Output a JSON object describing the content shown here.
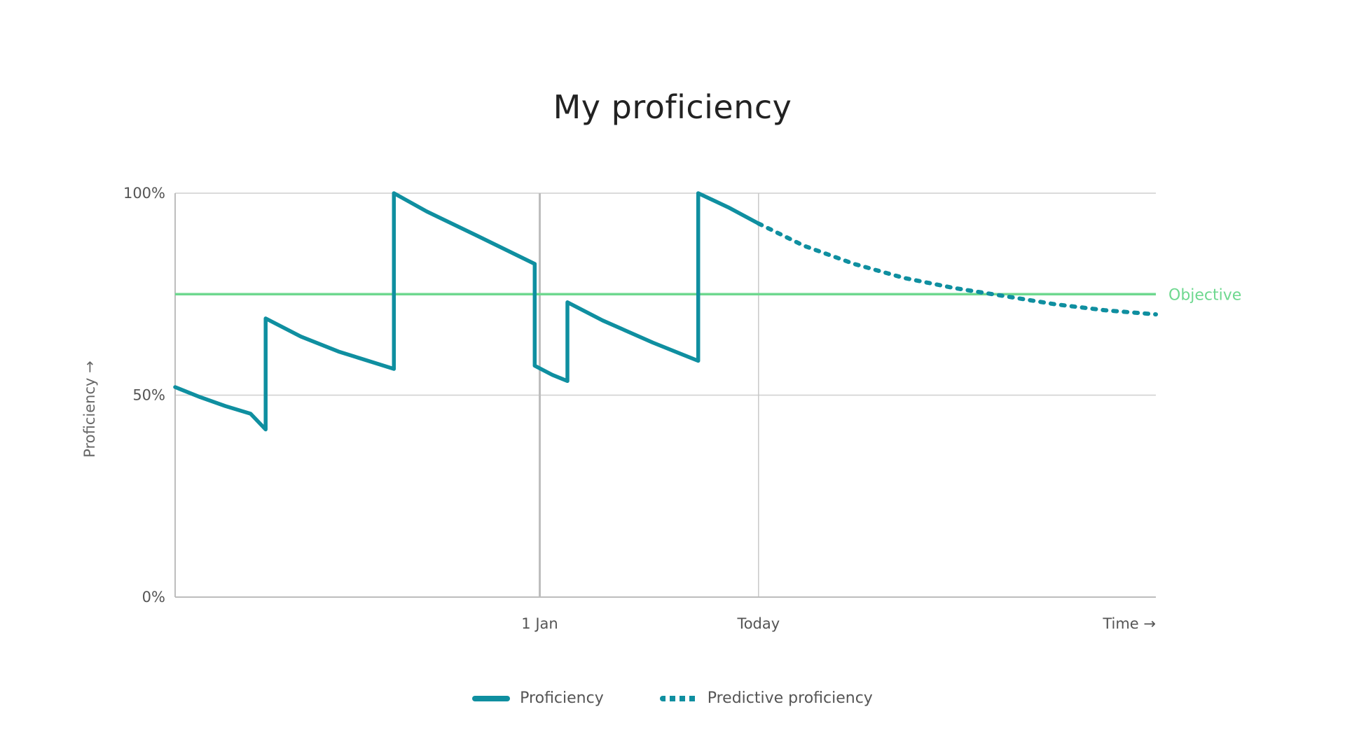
{
  "chart_data": {
    "type": "line",
    "title": "My proficiency",
    "xlabel": "Time →",
    "ylabel": "Proficiency →",
    "ylim": [
      0,
      100
    ],
    "x_tick_labels": [
      {
        "label": "1 Jan",
        "x": 14.5
      },
      {
        "label": "Today",
        "x": 23.2
      },
      {
        "label": "Time →",
        "x": 39
      }
    ],
    "y_ticks": [
      {
        "label": "0%",
        "value": 0
      },
      {
        "label": "50%",
        "value": 50
      },
      {
        "label": "100%",
        "value": 100
      }
    ],
    "xlim": [
      0,
      39
    ],
    "grid": true,
    "legend_position": "bottom",
    "objective": {
      "label": "Objective",
      "value": 75,
      "color": "#6ed88f"
    },
    "series": [
      {
        "name": "Proficiency",
        "style": "solid",
        "color": "#0f8fa0",
        "points": [
          [
            0,
            52
          ],
          [
            1,
            49.5
          ],
          [
            2,
            47.3
          ],
          [
            3,
            45.4
          ],
          [
            3.6,
            41.5
          ],
          [
            3.6,
            69
          ],
          [
            5,
            64.5
          ],
          [
            6.5,
            60.8
          ],
          [
            8.7,
            56.5
          ],
          [
            8.7,
            100
          ],
          [
            10,
            95.5
          ],
          [
            12,
            89.5
          ],
          [
            14.3,
            82.5
          ],
          [
            14.3,
            57.3
          ],
          [
            15,
            55
          ],
          [
            15.6,
            53.5
          ],
          [
            15.6,
            73
          ],
          [
            17,
            68.5
          ],
          [
            19,
            63
          ],
          [
            20.8,
            58.5
          ],
          [
            20.8,
            100
          ],
          [
            22,
            96.5
          ],
          [
            23.2,
            92.5
          ]
        ]
      },
      {
        "name": "Predictive proficiency",
        "style": "dotted",
        "color": "#0f8fa0",
        "points": [
          [
            23.2,
            92.5
          ],
          [
            25,
            87
          ],
          [
            27,
            82.5
          ],
          [
            29,
            79
          ],
          [
            31,
            76.5
          ],
          [
            33,
            74.5
          ],
          [
            35,
            72.5
          ],
          [
            37,
            71
          ],
          [
            39,
            70
          ]
        ]
      }
    ]
  }
}
